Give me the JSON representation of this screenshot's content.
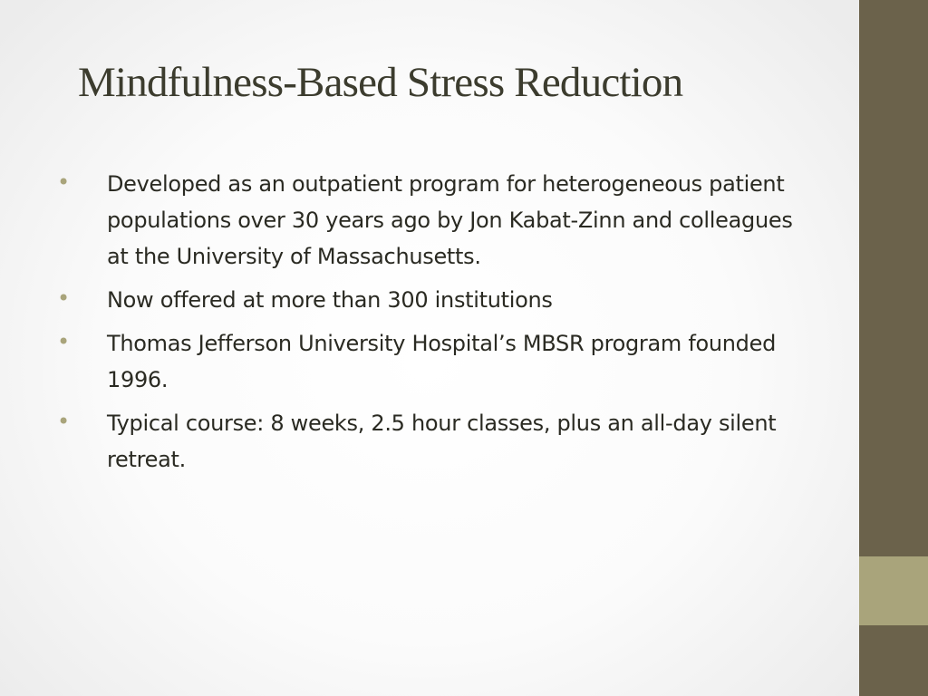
{
  "slide": {
    "title": "Mindfulness-Based Stress Reduction",
    "bullets": [
      "Developed as an outpatient program for heterogeneous patient populations over 30 years ago by Jon Kabat-Zinn and colleagues at the University of Massachusetts.",
      "Now offered at more than 300 institutions",
      "Thomas Jefferson University Hospital’s MBSR program founded 1996.",
      "Typical course: 8 weeks, 2.5 hour classes, plus an all-day silent retreat."
    ],
    "bullet_glyph": "•"
  },
  "colors": {
    "sidebar": "#6b624b",
    "sidebar_accent": "#a9a47b",
    "bullet": "#a9a47b",
    "title": "#3c3c2e",
    "text": "#2a2a22"
  }
}
